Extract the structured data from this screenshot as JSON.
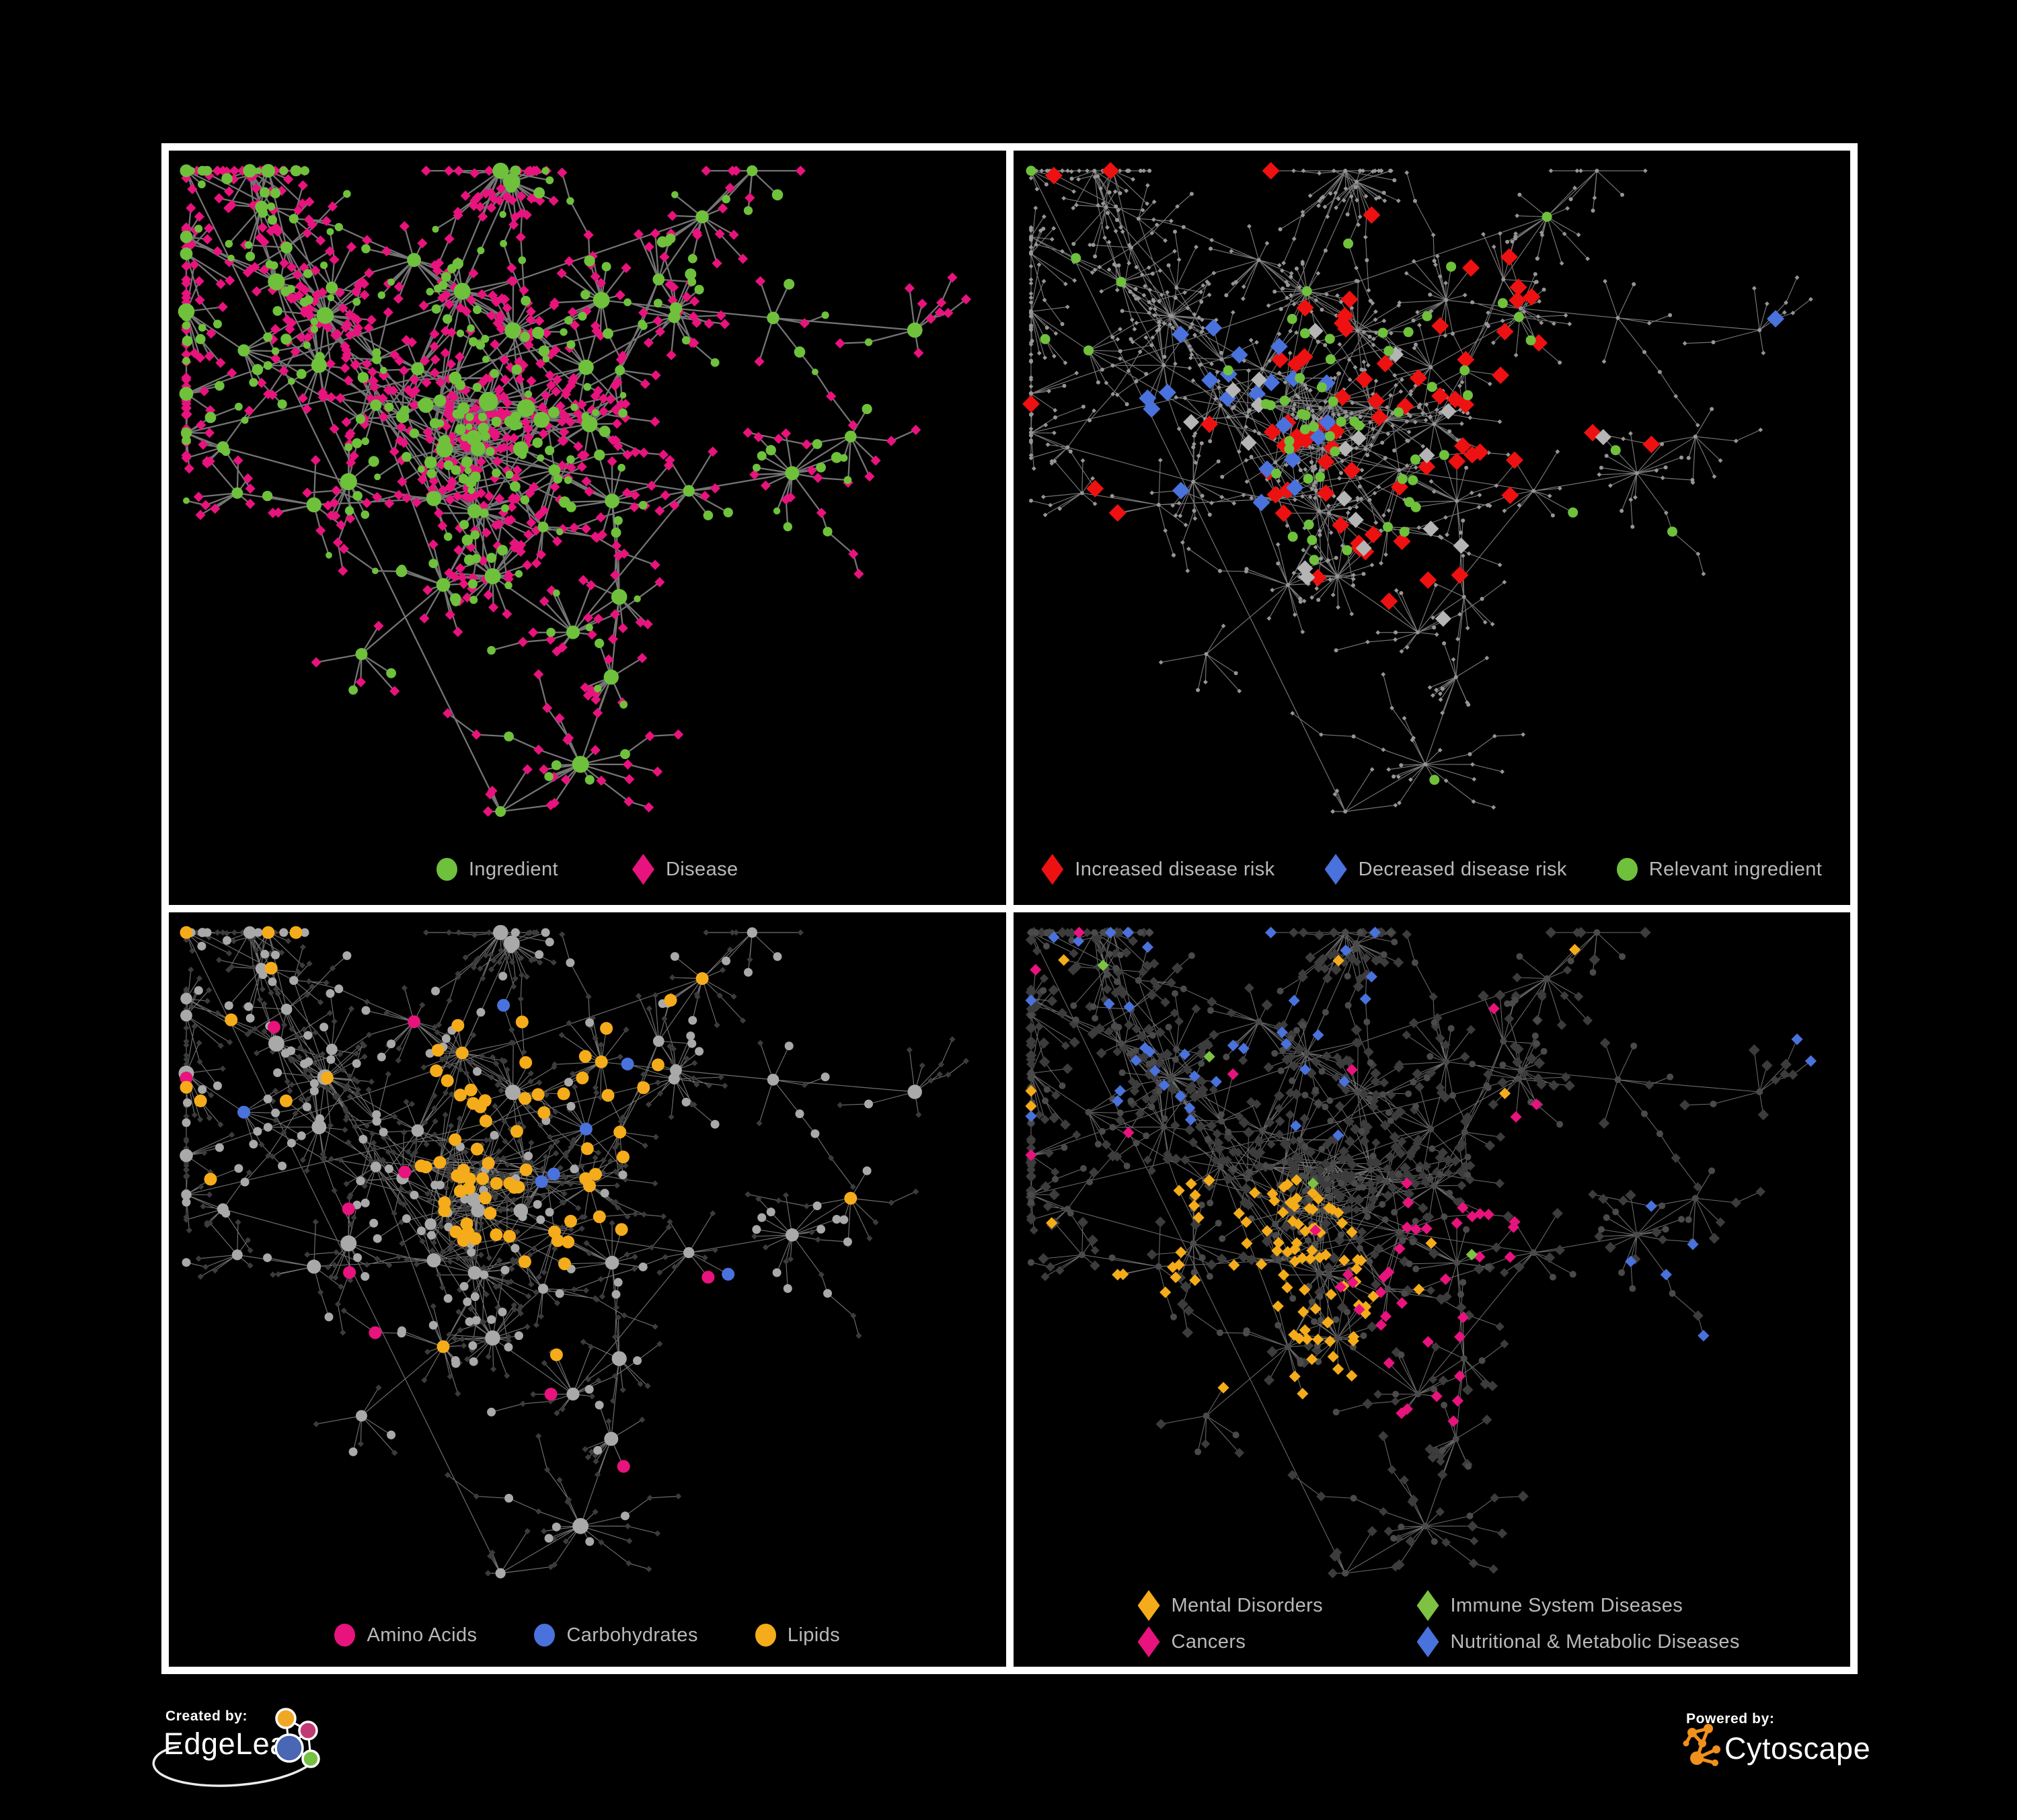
{
  "page": {
    "background": "#000000",
    "frame_color": "#ffffff"
  },
  "figure": {
    "legend_text_color": "#b9b9b9",
    "panels": [
      {
        "id": "ingredients-diseases",
        "legend": [
          {
            "label": "Ingredient",
            "shape": "circle",
            "color": "#6fc13c"
          },
          {
            "label": "Disease",
            "shape": "diamond",
            "color": "#e8137d"
          }
        ],
        "network": {
          "edge_color": "#7a7a7a"
        }
      },
      {
        "id": "disease-risk",
        "legend": [
          {
            "label": "Increased disease risk",
            "shape": "diamond",
            "color": "#ee1111"
          },
          {
            "label": "Decreased disease risk",
            "shape": "diamond",
            "color": "#4a72dc"
          },
          {
            "label": "Relevant ingredient",
            "shape": "circle",
            "color": "#6fc13c"
          }
        ],
        "network": {
          "edge_color": "#8c8c8c",
          "base_color": "#969696",
          "neutral_highlight": "#b5b5b5"
        }
      },
      {
        "id": "ingredient-classes",
        "legend": [
          {
            "label": "Amino Acids",
            "shape": "circle",
            "color": "#e8137d"
          },
          {
            "label": "Carbohydrates",
            "shape": "circle",
            "color": "#4a72dc"
          },
          {
            "label": "Lipids",
            "shape": "circle",
            "color": "#f5ac1a"
          }
        ],
        "network": {
          "edge_color": "#a0a0a0",
          "base_circle": "#a9a9a9",
          "base_diamond": "#3c3c3c"
        }
      },
      {
        "id": "disease-classes",
        "legend": [
          {
            "label": "Mental Disorders",
            "shape": "diamond",
            "color": "#f5ac1a"
          },
          {
            "label": "Immune System Diseases",
            "shape": "diamond",
            "color": "#7dc242"
          },
          {
            "label": "Cancers",
            "shape": "diamond",
            "color": "#e8137d"
          },
          {
            "label": "Nutritional & Metabolic Diseases",
            "shape": "diamond",
            "color": "#4a72dc"
          }
        ],
        "network": {
          "edge_color": "#8f8f8f",
          "base_circle": "#4a4a4a",
          "base_diamond": "#3c3c3c"
        }
      }
    ]
  },
  "footer": {
    "created_by": {
      "label": "Created by:",
      "brand": "EdgeLeap"
    },
    "powered_by": {
      "label": "Powered by:",
      "brand": "Cytoscape",
      "icon_color": "#f0911e"
    },
    "edgeleap_logo_colors": [
      "#f0a824",
      "#c23a74",
      "#4a67b5",
      "#76c043"
    ]
  }
}
